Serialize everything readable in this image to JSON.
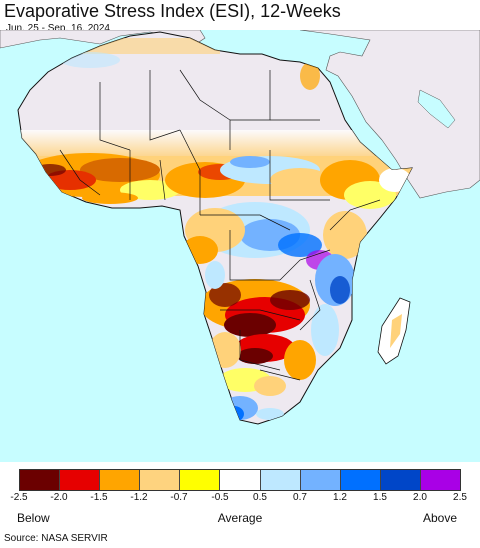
{
  "title": "Evaporative Stress Index (ESI), 12-Weeks",
  "subtitle": "Jun. 25 - Sep. 16, 2024",
  "colors": {
    "ocean": "#c7fdff",
    "non_african_land": "#eee9f0",
    "sahara_no_data": "#eee9f0",
    "border": "#111111"
  },
  "legend": {
    "colors": [
      "#6b0000",
      "#e60000",
      "#ffa500",
      "#fed37f",
      "#ffff00",
      "#ffffff",
      "#bee8ff",
      "#73b2ff",
      "#0070ff",
      "#0046c8",
      "#a900e6"
    ],
    "ticks": [
      "-2.5",
      "-2.0",
      "-1.5",
      "-1.2",
      "-0.7",
      "-0.5",
      "0.5",
      "0.7",
      "1.2",
      "1.5",
      "2.0",
      "2.5"
    ],
    "categories": {
      "below": "Below",
      "average": "Average",
      "above": "Above"
    }
  },
  "source": "Source: NASA SERVIR"
}
